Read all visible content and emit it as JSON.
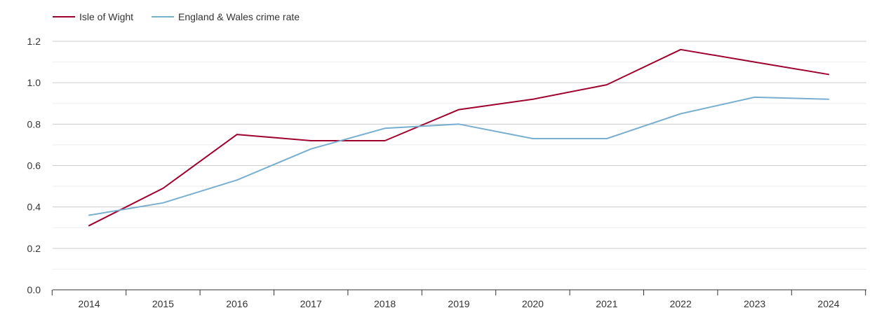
{
  "chart_data": {
    "type": "line",
    "title": "",
    "xlabel": "",
    "ylabel": "",
    "categories": [
      "2014",
      "2015",
      "2016",
      "2017",
      "2018",
      "2019",
      "2020",
      "2021",
      "2022",
      "2023",
      "2024"
    ],
    "ylim": [
      0,
      1.2
    ],
    "yticks": [
      "0.0",
      "0.2",
      "0.4",
      "0.6",
      "0.8",
      "1.0",
      "1.2"
    ],
    "ytick_values": [
      0,
      0.2,
      0.4,
      0.6,
      0.8,
      1.0,
      1.2
    ],
    "grid": true,
    "legend_position": "top-left",
    "series": [
      {
        "name": "Isle of Wight",
        "color": "#a0002c",
        "values": [
          0.31,
          0.49,
          0.75,
          0.72,
          0.72,
          0.87,
          0.92,
          0.99,
          1.16,
          1.1,
          1.04
        ]
      },
      {
        "name": "England & Wales crime rate",
        "color": "#78aed0",
        "values": [
          0.36,
          0.42,
          0.53,
          0.68,
          0.78,
          0.8,
          0.73,
          0.73,
          0.85,
          0.93,
          0.92
        ]
      }
    ]
  }
}
